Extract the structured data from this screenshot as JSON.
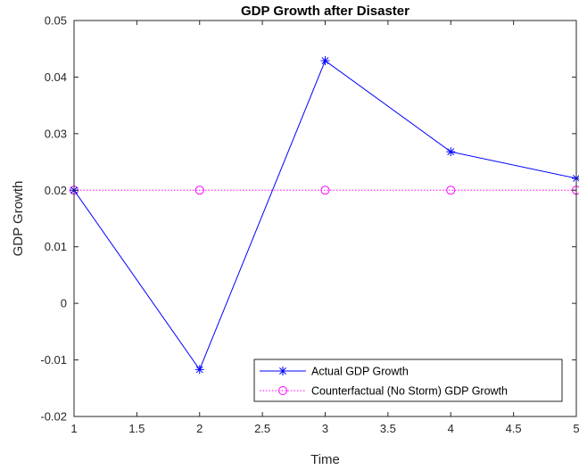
{
  "chart_data": {
    "type": "line",
    "title": "GDP Growth after Disaster",
    "xlabel": "Time",
    "ylabel": "GDP Growth",
    "xlim": [
      1,
      5
    ],
    "ylim": [
      -0.02,
      0.05
    ],
    "xticks": [
      1,
      1.5,
      2,
      2.5,
      3,
      3.5,
      4,
      4.5,
      5
    ],
    "xtick_labels": [
      "1",
      "1.5",
      "2",
      "2.5",
      "3",
      "3.5",
      "4",
      "4.5",
      "5"
    ],
    "yticks": [
      -0.02,
      -0.01,
      0,
      0.01,
      0.02,
      0.03,
      0.04,
      0.05
    ],
    "ytick_labels": [
      "-0.02",
      "-0.01",
      "0",
      "0.01",
      "0.02",
      "0.03",
      "0.04",
      "0.05"
    ],
    "grid": false,
    "legend_position": "bottom-right",
    "series": [
      {
        "name": "Actual GDP Growth",
        "x": [
          1,
          2,
          3,
          4,
          5
        ],
        "y": [
          0.02,
          -0.0117,
          0.0429,
          0.0268,
          0.0221
        ],
        "color": "#0000ff",
        "line_style": "solid",
        "marker": "asterisk"
      },
      {
        "name": "Counterfactual (No Storm) GDP Growth",
        "x": [
          1,
          2,
          3,
          4,
          5
        ],
        "y": [
          0.02,
          0.02,
          0.02,
          0.02,
          0.02
        ],
        "color": "#ff00ff",
        "line_style": "dotted",
        "marker": "circle"
      }
    ]
  }
}
